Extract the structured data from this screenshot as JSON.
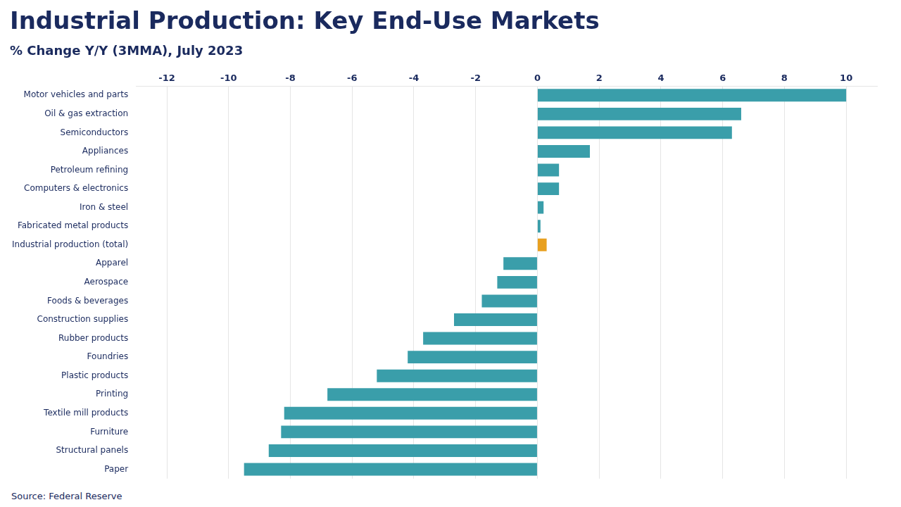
{
  "chart_data": {
    "type": "bar",
    "orientation": "horizontal",
    "title": "Industrial Production: Key End-Use Markets",
    "subtitle": "% Change Y/Y (3MMA), July 2023",
    "source": "Source:  Federal Reserve",
    "categories": [
      "Motor vehicles and parts",
      "Oil & gas extraction",
      "Semiconductors",
      "Appliances",
      "Petroleum refining",
      "Computers & electronics",
      "Iron & steel",
      "Fabricated metal products",
      "Industrial production (total)",
      "Apparel",
      "Aerospace",
      "Foods & beverages",
      "Construction supplies",
      "Rubber products",
      "Foundries",
      "Plastic products",
      "Printing",
      "Textile mill products",
      "Furniture",
      "Structural panels",
      "Paper"
    ],
    "values": [
      10.0,
      6.6,
      6.3,
      1.7,
      0.7,
      0.7,
      0.2,
      0.1,
      0.3,
      -1.1,
      -1.3,
      -1.8,
      -2.7,
      -3.7,
      -4.2,
      -5.2,
      -6.8,
      -8.2,
      -8.3,
      -8.7,
      -9.5
    ],
    "colors": [
      "#3a9eaa",
      "#3a9eaa",
      "#3a9eaa",
      "#3a9eaa",
      "#3a9eaa",
      "#3a9eaa",
      "#3a9eaa",
      "#3a9eaa",
      "#e8a020",
      "#3a9eaa",
      "#3a9eaa",
      "#3a9eaa",
      "#3a9eaa",
      "#3a9eaa",
      "#3a9eaa",
      "#3a9eaa",
      "#3a9eaa",
      "#3a9eaa",
      "#3a9eaa",
      "#3a9eaa",
      "#3a9eaa"
    ],
    "xlim": [
      -13,
      11
    ],
    "xticks": [
      -12,
      -10,
      -8,
      -6,
      -4,
      -2,
      0,
      2,
      4,
      6,
      8,
      10
    ],
    "grid": true
  }
}
